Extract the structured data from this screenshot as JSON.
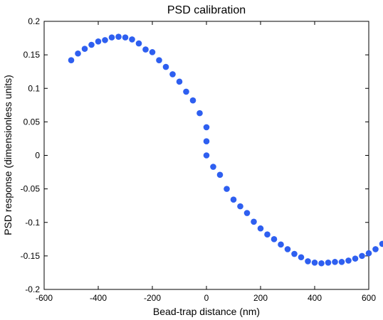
{
  "chart_data": {
    "type": "scatter",
    "title": "PSD calibration",
    "xlabel": "Bead-trap distance (nm)",
    "ylabel": "PSD response (dimensionless units)",
    "xlim": [
      -600,
      600
    ],
    "ylim": [
      -0.2,
      0.2
    ],
    "xticks": [
      -600,
      -400,
      -200,
      0,
      200,
      400,
      600
    ],
    "xtick_labels": [
      "-600",
      "-400",
      "-200",
      "0",
      "200",
      "400",
      "600"
    ],
    "yticks": [
      -0.2,
      -0.15,
      -0.1,
      -0.05,
      0,
      0.05,
      0.1,
      0.15,
      0.2
    ],
    "ytick_labels": [
      "-0.2",
      "-0.15",
      "-0.1",
      "-0.05",
      "0",
      "0.05",
      "0.1",
      "0.15",
      "0.2"
    ],
    "grid": false,
    "marker_color": "#2e5ff0",
    "series": [
      {
        "points": [
          [
            -500,
            0.142
          ],
          [
            -475,
            0.152
          ],
          [
            -450,
            0.159
          ],
          [
            -425,
            0.165
          ],
          [
            -400,
            0.17
          ],
          [
            -375,
            0.172
          ],
          [
            -350,
            0.176
          ],
          [
            -325,
            0.177
          ],
          [
            -300,
            0.176
          ],
          [
            -275,
            0.173
          ],
          [
            -250,
            0.167
          ],
          [
            -225,
            0.158
          ],
          [
            -200,
            0.154
          ],
          [
            -175,
            0.142
          ],
          [
            -150,
            0.132
          ],
          [
            -125,
            0.121
          ],
          [
            -100,
            0.11
          ],
          [
            -75,
            0.095
          ],
          [
            -50,
            0.082
          ],
          [
            -25,
            0.063
          ],
          [
            0,
            0.042
          ],
          [
            0,
            0.021
          ],
          [
            0,
            0.0
          ],
          [
            25,
            -0.017
          ],
          [
            50,
            -0.029
          ],
          [
            75,
            -0.05
          ],
          [
            100,
            -0.066
          ],
          [
            125,
            -0.076
          ],
          [
            150,
            -0.086
          ],
          [
            175,
            -0.099
          ],
          [
            200,
            -0.109
          ],
          [
            225,
            -0.118
          ],
          [
            250,
            -0.125
          ],
          [
            275,
            -0.133
          ],
          [
            300,
            -0.14
          ],
          [
            325,
            -0.147
          ],
          [
            350,
            -0.152
          ],
          [
            375,
            -0.158
          ],
          [
            400,
            -0.16
          ],
          [
            425,
            -0.161
          ],
          [
            450,
            -0.16
          ],
          [
            475,
            -0.159
          ],
          [
            500,
            -0.159
          ],
          [
            525,
            -0.157
          ],
          [
            550,
            -0.154
          ],
          [
            575,
            -0.15
          ],
          [
            600,
            -0.146
          ],
          [
            625,
            -0.14
          ],
          [
            650,
            -0.132
          ]
        ]
      }
    ]
  }
}
